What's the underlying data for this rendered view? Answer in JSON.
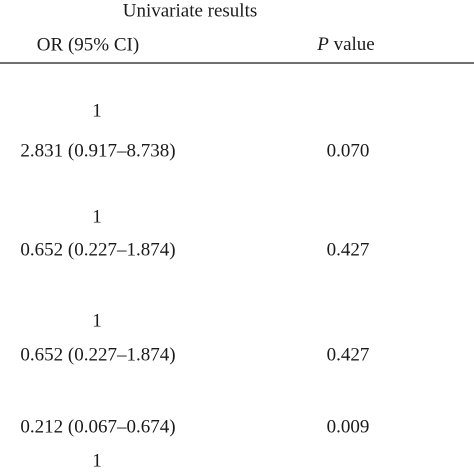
{
  "header": {
    "group": "Univariate results",
    "or_column": "OR (95% CI)",
    "p_column_italic": "P",
    "p_column_rest": "value"
  },
  "table": {
    "rows": [
      {
        "or": "1"
      },
      {
        "or": "2.831 (0.917–8.738)",
        "p": "0.070"
      },
      {
        "or": "1"
      },
      {
        "or": "0.652 (0.227–1.874)",
        "p": "0.427"
      },
      {
        "or": "1"
      },
      {
        "or": "0.652 (0.227–1.874)",
        "p": "0.427"
      },
      {
        "or": "0.212 (0.067–0.674)",
        "p": "0.009"
      },
      {
        "or": "1"
      }
    ]
  }
}
